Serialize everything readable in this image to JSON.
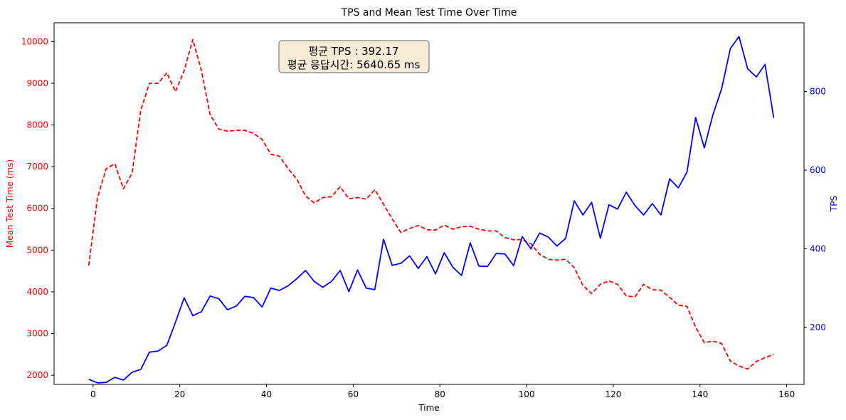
{
  "chart_data": {
    "type": "line",
    "title": "TPS and Mean Test Time Over Time",
    "xlabel": "Time",
    "ylabel_left": "Mean Test Time (ms)",
    "ylabel_right": "TPS",
    "xlim": [
      -9,
      164
    ],
    "ylim_left": [
      1780,
      10450
    ],
    "ylim_right": [
      55,
      975
    ],
    "xticks": [
      0,
      20,
      40,
      60,
      80,
      100,
      120,
      140,
      160
    ],
    "yticks_left": [
      2000,
      3000,
      4000,
      5000,
      6000,
      7000,
      8000,
      9000,
      10000
    ],
    "yticks_right": [
      200,
      400,
      600,
      800
    ],
    "annotation": {
      "line1": "평균 TPS : 392.17",
      "line2": "평균 응답시간: 5640.65 ms"
    },
    "colors": {
      "mean_test_time": "#ff0000",
      "tps": "#0000ff",
      "annotation_bg": "#f7ecd7",
      "annotation_border": "#808080"
    },
    "x": [
      -1,
      1,
      3,
      5,
      7,
      9,
      11,
      13,
      15,
      17,
      19,
      21,
      23,
      25,
      27,
      29,
      31,
      33,
      35,
      37,
      39,
      41,
      43,
      45,
      47,
      49,
      51,
      53,
      55,
      57,
      59,
      61,
      63,
      65,
      67,
      69,
      71,
      73,
      75,
      77,
      79,
      81,
      83,
      85,
      87,
      89,
      91,
      93,
      95,
      97,
      99,
      101,
      103,
      105,
      107,
      109,
      111,
      113,
      115,
      117,
      119,
      121,
      123,
      125,
      127,
      129,
      131,
      133,
      135,
      137,
      139,
      141,
      143,
      145,
      147,
      149,
      151,
      153,
      155,
      157
    ],
    "series": [
      {
        "name": "Mean Test Time (ms)",
        "axis": "left",
        "style": "dashed",
        "values": [
          4630,
          6250,
          6950,
          7070,
          6470,
          6850,
          8350,
          9000,
          9000,
          9250,
          8800,
          9300,
          10050,
          9300,
          8250,
          7900,
          7850,
          7870,
          7870,
          7800,
          7650,
          7300,
          7250,
          6950,
          6700,
          6300,
          6130,
          6260,
          6280,
          6520,
          6230,
          6260,
          6220,
          6450,
          6100,
          5750,
          5420,
          5520,
          5590,
          5490,
          5480,
          5600,
          5500,
          5560,
          5570,
          5500,
          5460,
          5460,
          5300,
          5250,
          5250,
          5150,
          4900,
          4780,
          4760,
          4780,
          4580,
          4150,
          3960,
          4180,
          4260,
          4180,
          3900,
          3880,
          4180,
          4050,
          4040,
          3870,
          3680,
          3650,
          3150,
          2780,
          2820,
          2760,
          2340,
          2220,
          2150,
          2330,
          2420,
          2500
        ]
      },
      {
        "name": "TPS",
        "axis": "right",
        "style": "solid",
        "values": [
          68,
          59,
          60,
          73,
          66,
          86,
          93,
          137,
          140,
          154,
          213,
          275,
          230,
          240,
          280,
          273,
          245,
          254,
          279,
          276,
          252,
          300,
          294,
          306,
          324,
          345,
          317,
          302,
          317,
          345,
          291,
          346,
          300,
          296,
          424,
          358,
          363,
          382,
          350,
          380,
          336,
          390,
          353,
          332,
          415,
          356,
          355,
          388,
          387,
          357,
          431,
          400,
          440,
          430,
          407,
          426,
          522,
          486,
          518,
          427,
          512,
          501,
          544,
          510,
          486,
          515,
          486,
          578,
          555,
          595,
          734,
          657,
          742,
          807,
          909,
          940,
          858,
          837,
          869,
          733
        ]
      }
    ]
  }
}
